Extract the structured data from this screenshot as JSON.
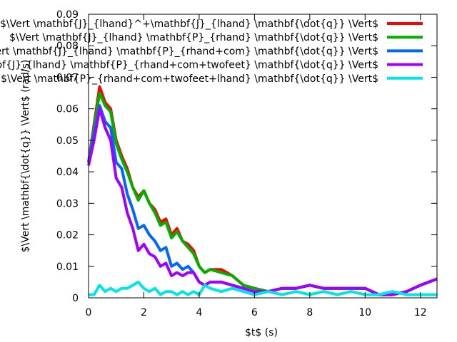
{
  "chart_data": {
    "type": "line",
    "xlabel": "$t$ (s)",
    "ylabel": "$\\Vert \\mathbf{\\dot{q}} \\Vert$ (rad/s)",
    "xlim": [
      0,
      12.6
    ],
    "ylim": [
      0,
      0.09
    ],
    "x_ticks": [
      0,
      2,
      4,
      6,
      8,
      10,
      12
    ],
    "y_ticks": [
      0,
      0.01,
      0.02,
      0.03,
      0.04,
      0.05,
      0.06,
      0.07,
      0.08,
      0.09
    ],
    "x_tick_labels": [
      "0",
      "2",
      "4",
      "6",
      "8",
      "10",
      "12"
    ],
    "y_tick_labels": [
      "0",
      "0.01",
      "0.02",
      "0.03",
      "0.04",
      "0.05",
      "0.06",
      "0.07",
      "0.08",
      "0.09"
    ],
    "legend_position": "top-right",
    "grid": false,
    "series": [
      {
        "name": "$\\Vert \\mathbf{J}_{lhand}^+\\mathbf{J}_{lhand} \\mathbf{\\dot{q}} \\Vert$",
        "color": "#ff0000",
        "x": [
          0,
          0.2,
          0.4,
          0.6,
          0.8,
          1.0,
          1.2,
          1.4,
          1.6,
          1.8,
          2.0,
          2.2,
          2.4,
          2.6,
          2.8,
          3.0,
          3.2,
          3.4,
          3.6,
          3.8,
          4.0,
          4.2,
          4.4,
          4.8,
          5.2,
          5.6,
          6.0,
          6.5,
          7.0,
          7.5,
          8.0,
          8.5,
          9.0,
          9.5,
          10.0,
          10.5,
          11.0,
          11.5,
          12.0,
          12.6
        ],
        "y": [
          0.043,
          0.055,
          0.067,
          0.062,
          0.06,
          0.05,
          0.045,
          0.041,
          0.035,
          0.032,
          0.034,
          0.03,
          0.028,
          0.024,
          0.025,
          0.02,
          0.022,
          0.018,
          0.017,
          0.015,
          0.01,
          0.008,
          0.009,
          0.009,
          0.007,
          0.004,
          0.003,
          0.002,
          0.003,
          0.003,
          0.004,
          0.003,
          0.003,
          0.003,
          0.003,
          0.001,
          0.001,
          0.002,
          0.004,
          0.006
        ]
      },
      {
        "name": "$\\Vert \\mathbf{J}_{lhand} \\mathbf{P}_{rhand} \\mathbf{\\dot{q}} \\Vert$",
        "color": "#00b000",
        "x": [
          0,
          0.2,
          0.4,
          0.6,
          0.8,
          1.0,
          1.2,
          1.4,
          1.6,
          1.8,
          2.0,
          2.2,
          2.4,
          2.6,
          2.8,
          3.0,
          3.2,
          3.4,
          3.6,
          3.8,
          4.0,
          4.2,
          4.4,
          4.8,
          5.2,
          5.6,
          6.0,
          6.5,
          7.0,
          7.5,
          8.0,
          8.5,
          9.0,
          9.5,
          10.0,
          10.5,
          11.0,
          11.5,
          12.0,
          12.6
        ],
        "y": [
          0.043,
          0.054,
          0.065,
          0.061,
          0.059,
          0.049,
          0.044,
          0.04,
          0.035,
          0.031,
          0.034,
          0.03,
          0.027,
          0.023,
          0.024,
          0.019,
          0.021,
          0.018,
          0.016,
          0.014,
          0.01,
          0.008,
          0.009,
          0.008,
          0.007,
          0.004,
          0.003,
          0.002,
          0.003,
          0.003,
          0.004,
          0.003,
          0.003,
          0.003,
          0.003,
          0.001,
          0.001,
          0.002,
          0.004,
          0.006
        ]
      },
      {
        "name": "$\\Vert \\mathbf{J}_{lhand} \\mathbf{P}_{rhand+com} \\mathbf{\\dot{q}} \\Vert$",
        "color": "#0066ff",
        "x": [
          0,
          0.2,
          0.4,
          0.6,
          0.8,
          1.0,
          1.2,
          1.4,
          1.6,
          1.8,
          2.0,
          2.2,
          2.4,
          2.6,
          2.8,
          3.0,
          3.2,
          3.4,
          3.6,
          3.8,
          4.0,
          4.2,
          4.4,
          4.8,
          5.2,
          5.6,
          6.0,
          6.5,
          7.0,
          7.5,
          8.0,
          8.5,
          9.0,
          9.5,
          10.0,
          10.5,
          11.0,
          11.5,
          12.0,
          12.6
        ],
        "y": [
          0.043,
          0.052,
          0.061,
          0.056,
          0.054,
          0.043,
          0.041,
          0.033,
          0.028,
          0.022,
          0.023,
          0.02,
          0.018,
          0.015,
          0.016,
          0.01,
          0.011,
          0.009,
          0.01,
          0.008,
          0.005,
          0.004,
          0.005,
          0.005,
          0.004,
          0.003,
          0.002,
          0.002,
          0.003,
          0.003,
          0.004,
          0.003,
          0.003,
          0.003,
          0.003,
          0.001,
          0.001,
          0.002,
          0.004,
          0.006
        ]
      },
      {
        "name": "$\\Vert \\mathbf{J}_{lhand} \\mathbf{P}_{rhand+com+twofeet} \\mathbf{\\dot{q}} \\Vert$",
        "color": "#a000ff",
        "x": [
          0,
          0.2,
          0.4,
          0.6,
          0.8,
          1.0,
          1.2,
          1.4,
          1.6,
          1.8,
          2.0,
          2.2,
          2.4,
          2.6,
          2.8,
          3.0,
          3.2,
          3.4,
          3.6,
          3.8,
          4.0,
          4.2,
          4.4,
          4.8,
          5.2,
          5.6,
          6.0,
          6.5,
          7.0,
          7.5,
          8.0,
          8.5,
          9.0,
          9.5,
          10.0,
          10.5,
          11.0,
          11.5,
          12.0,
          12.6
        ],
        "y": [
          0.042,
          0.05,
          0.06,
          0.054,
          0.05,
          0.038,
          0.035,
          0.027,
          0.022,
          0.015,
          0.017,
          0.014,
          0.013,
          0.01,
          0.011,
          0.007,
          0.008,
          0.007,
          0.008,
          0.008,
          0.005,
          0.004,
          0.005,
          0.005,
          0.004,
          0.003,
          0.002,
          0.002,
          0.003,
          0.003,
          0.004,
          0.003,
          0.003,
          0.003,
          0.003,
          0.001,
          0.001,
          0.002,
          0.004,
          0.006
        ]
      },
      {
        "name": "$\\Vert \\mathbf{P}_{rhand+com+twofeet+lhand} \\mathbf{\\dot{q}} \\Vert$",
        "color": "#00e5e5",
        "x": [
          0,
          0.2,
          0.4,
          0.6,
          0.8,
          1.0,
          1.2,
          1.4,
          1.6,
          1.8,
          2.0,
          2.2,
          2.4,
          2.6,
          2.8,
          3.0,
          3.2,
          3.4,
          3.6,
          3.8,
          4.0,
          4.2,
          4.4,
          4.8,
          5.2,
          5.6,
          6.0,
          6.5,
          7.0,
          7.5,
          8.0,
          8.5,
          9.0,
          9.5,
          10.0,
          10.5,
          11.0,
          11.5,
          12.0,
          12.6
        ],
        "y": [
          0.001,
          0.001,
          0.004,
          0.002,
          0.003,
          0.002,
          0.003,
          0.003,
          0.004,
          0.005,
          0.003,
          0.002,
          0.003,
          0.001,
          0.002,
          0.002,
          0.001,
          0.002,
          0.001,
          0.002,
          0.001,
          0.004,
          0.003,
          0.002,
          0.003,
          0.002,
          0.001,
          0.002,
          0.001,
          0.002,
          0.001,
          0.002,
          0.001,
          0.002,
          0.001,
          0.001,
          0.002,
          0.001,
          0.001,
          0.001
        ]
      }
    ]
  }
}
